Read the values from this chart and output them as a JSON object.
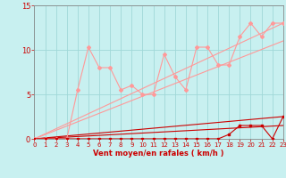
{
  "xlabel": "Vent moyen/en rafales ( km/h )",
  "ylim": [
    0,
    15
  ],
  "xlim": [
    0,
    23
  ],
  "yticks": [
    0,
    5,
    10,
    15
  ],
  "xticks": [
    0,
    1,
    2,
    3,
    4,
    5,
    6,
    7,
    8,
    9,
    10,
    11,
    12,
    13,
    14,
    15,
    16,
    17,
    18,
    19,
    20,
    21,
    22,
    23
  ],
  "bg_color": "#c8f0f0",
  "grid_color": "#a0d8d8",
  "axis_color": "#888888",
  "label_color": "#cc0000",
  "line_light_color": "#ff9999",
  "line_dark_color": "#cc0000",
  "line1_x": [
    0,
    1,
    2,
    3,
    4,
    5,
    6,
    7,
    8,
    9,
    10,
    11,
    12,
    13,
    14,
    15,
    16,
    17,
    18,
    19,
    20,
    21,
    22,
    23
  ],
  "line1_y": [
    0,
    0,
    0,
    0,
    5.5,
    10.3,
    8.0,
    8.0,
    5.5,
    6.0,
    5.0,
    5.0,
    9.5,
    7.0,
    5.5,
    10.3,
    10.3,
    8.3,
    8.3,
    11.5,
    13.0,
    11.5,
    13.0,
    13.0
  ],
  "line2_x": [
    0,
    1,
    2,
    3,
    4,
    5,
    6,
    7,
    8,
    9,
    10,
    11,
    12,
    13,
    14,
    15,
    16,
    17,
    18,
    19,
    20,
    21,
    22,
    23
  ],
  "line2_y": [
    0,
    0,
    0,
    0,
    0,
    0,
    0,
    0,
    0,
    0,
    0,
    0,
    0,
    0,
    0,
    0,
    0,
    0,
    0.5,
    1.5,
    1.5,
    1.5,
    0,
    2.5
  ],
  "line3_x": [
    0,
    23
  ],
  "line3_y": [
    0,
    13
  ],
  "line4_x": [
    0,
    23
  ],
  "line4_y": [
    0,
    11
  ],
  "line5_x": [
    0,
    23
  ],
  "line5_y": [
    0,
    2.5
  ],
  "line6_x": [
    0,
    23
  ],
  "line6_y": [
    0,
    1.5
  ]
}
